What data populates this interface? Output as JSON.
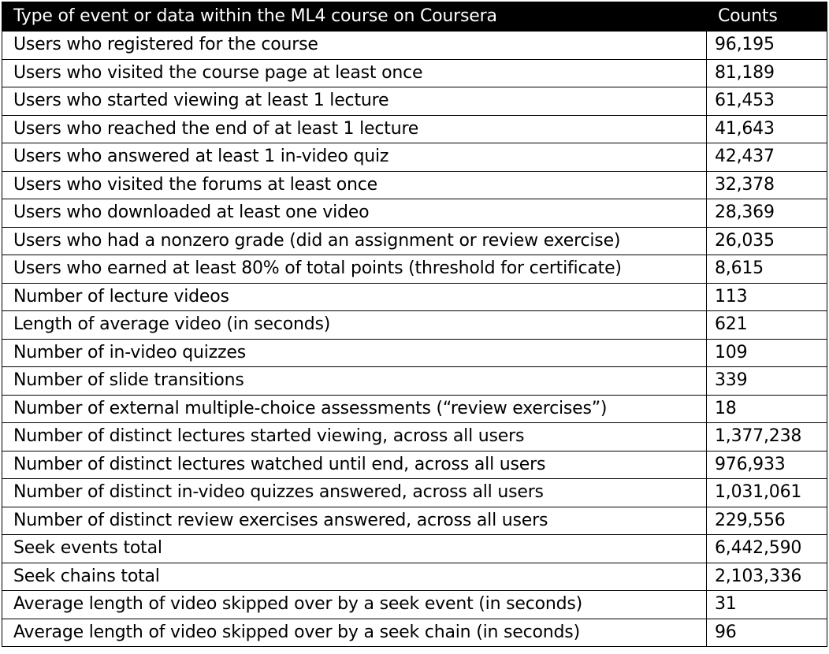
{
  "table": {
    "headers": [
      "Type of event or data within the ML4 course on Coursera",
      "Counts"
    ],
    "rows": [
      [
        "Users who registered for the course",
        "96,195"
      ],
      [
        "Users who visited the course page at least once",
        "81,189"
      ],
      [
        "Users who started viewing at least 1 lecture",
        "61,453"
      ],
      [
        "Users who reached the end of at least 1 lecture",
        "41,643"
      ],
      [
        "Users who answered at least 1 in-video quiz",
        "42,437"
      ],
      [
        "Users who visited the forums at least once",
        "32,378"
      ],
      [
        "Users who downloaded at least one video",
        "28,369"
      ],
      [
        "Users who had a nonzero grade (did an assignment or review exercise)",
        "26,035"
      ],
      [
        "Users who earned at least 80% of total points (threshold for certificate)",
        "8,615"
      ],
      [
        "Number of lecture videos",
        "113"
      ],
      [
        "Length of average video (in seconds)",
        "621"
      ],
      [
        "Number of in-video quizzes",
        "109"
      ],
      [
        "Number of slide transitions",
        "339"
      ],
      [
        "Number of external multiple-choice assessments (“review exercises”)",
        "18"
      ],
      [
        "Number of distinct lectures started viewing, across all users",
        "1,377,238"
      ],
      [
        "Number of distinct lectures watched until end, across all users",
        "976,933"
      ],
      [
        "Number of distinct in-video quizzes answered, across all users",
        "1,031,061"
      ],
      [
        "Number of distinct review exercises answered, across all users",
        "229,556"
      ],
      [
        "Seek events total",
        "6,442,590"
      ],
      [
        "Seek chains total",
        "2,103,336"
      ],
      [
        "Average length of video skipped over by a seek event (in seconds)",
        "31"
      ],
      [
        "Average length of video skipped over by a seek chain (in seconds)",
        "96"
      ]
    ]
  }
}
